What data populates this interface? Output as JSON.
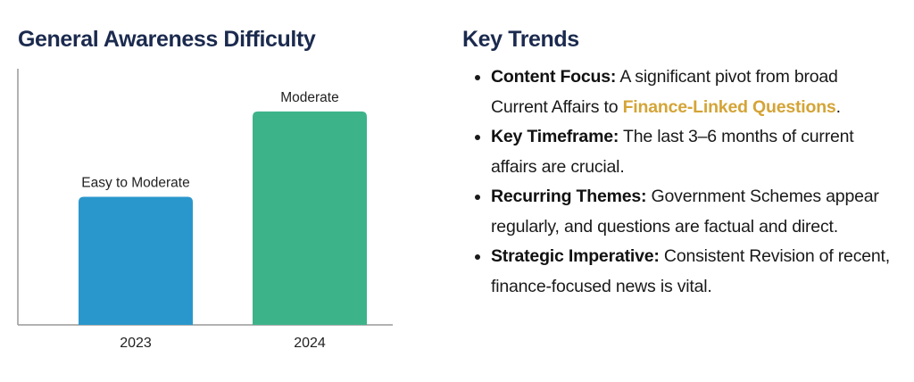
{
  "chart_data": {
    "type": "bar",
    "title": "General Awareness Difficulty",
    "categories": [
      "2023",
      "2024"
    ],
    "values": [
      3,
      5
    ],
    "data_labels": [
      "Easy to Moderate",
      "Moderate"
    ],
    "colors": [
      "#2a97cc",
      "#3db38a"
    ],
    "ylim": [
      0,
      6
    ],
    "xlabel": "",
    "ylabel": "",
    "grid": false,
    "legend": "none"
  },
  "trends": {
    "title": "Key Trends",
    "items": [
      {
        "label": "Content Focus:",
        "text": " A significant pivot from broad Current Affairs to ",
        "highlight": "Finance-Linked Questions",
        "after": "."
      },
      {
        "label": "Key Timeframe:",
        "text": " The last 3–6 months of current affairs are crucial."
      },
      {
        "label": "Recurring Themes:",
        "text": " Government Schemes appear regularly, and questions are factual and direct."
      },
      {
        "label": "Strategic Imperative:",
        "text": " Consistent Revision of recent, finance-focused news is vital."
      }
    ],
    "highlight_color": "#d4a437"
  }
}
